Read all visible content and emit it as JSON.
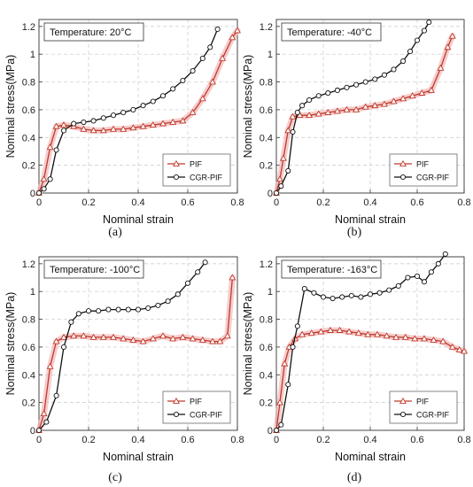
{
  "chart_data": [
    {
      "type": "line",
      "panel_label": "(a)",
      "annotation": "Temperature: 20°C",
      "xlabel": "Nominal strain",
      "ylabel": "Nominal stress(MPa)",
      "xlim": [
        0,
        0.8
      ],
      "ylim": [
        0,
        1.25
      ],
      "xticks": [
        "0",
        "0.2",
        "0.4",
        "0.6",
        "0.8"
      ],
      "yticks": [
        "0",
        "0.2",
        "0.4",
        "0.6",
        "0.8",
        "1",
        "1.2"
      ],
      "grid": true,
      "legend_position": "bottom-right",
      "series": [
        {
          "name": "PIF",
          "color": "#c0392b",
          "marker": "triangle",
          "x": [
            0,
            0.02,
            0.045,
            0.07,
            0.1,
            0.14,
            0.18,
            0.22,
            0.26,
            0.3,
            0.34,
            0.38,
            0.42,
            0.46,
            0.5,
            0.54,
            0.58,
            0.62,
            0.66,
            0.7,
            0.74,
            0.78,
            0.8
          ],
          "y": [
            0,
            0.1,
            0.33,
            0.48,
            0.49,
            0.48,
            0.46,
            0.45,
            0.45,
            0.46,
            0.46,
            0.47,
            0.48,
            0.49,
            0.5,
            0.51,
            0.52,
            0.58,
            0.68,
            0.8,
            0.97,
            1.12,
            1.17
          ]
        },
        {
          "name": "CGR-PIF",
          "color": "#111111",
          "marker": "circle",
          "x": [
            0,
            0.02,
            0.045,
            0.07,
            0.1,
            0.14,
            0.18,
            0.22,
            0.26,
            0.3,
            0.34,
            0.38,
            0.42,
            0.46,
            0.5,
            0.54,
            0.58,
            0.62,
            0.66,
            0.69,
            0.72
          ],
          "y": [
            0,
            0.03,
            0.1,
            0.31,
            0.45,
            0.5,
            0.51,
            0.52,
            0.54,
            0.56,
            0.58,
            0.6,
            0.63,
            0.66,
            0.7,
            0.75,
            0.81,
            0.88,
            0.97,
            1.05,
            1.18
          ]
        }
      ]
    },
    {
      "type": "line",
      "panel_label": "(b)",
      "annotation": "Temperature: -40°C",
      "xlabel": "Nominal strain",
      "ylabel": "Nominal stress(MPa)",
      "xlim": [
        0,
        0.8
      ],
      "ylim": [
        0,
        1.25
      ],
      "xticks": [
        "0",
        "0.2",
        "0.4",
        "0.6",
        "0.8"
      ],
      "yticks": [
        "0",
        "0.2",
        "0.4",
        "0.6",
        "0.8",
        "1",
        "1.2"
      ],
      "grid": true,
      "legend_position": "bottom-right",
      "series": [
        {
          "name": "PIF",
          "color": "#c0392b",
          "marker": "triangle",
          "x": [
            0,
            0.015,
            0.03,
            0.05,
            0.07,
            0.1,
            0.14,
            0.18,
            0.22,
            0.26,
            0.3,
            0.34,
            0.38,
            0.42,
            0.46,
            0.5,
            0.54,
            0.58,
            0.62,
            0.66,
            0.7,
            0.73,
            0.75
          ],
          "y": [
            0,
            0.1,
            0.25,
            0.45,
            0.55,
            0.56,
            0.56,
            0.57,
            0.58,
            0.59,
            0.6,
            0.6,
            0.62,
            0.63,
            0.64,
            0.66,
            0.68,
            0.7,
            0.72,
            0.74,
            0.9,
            1.05,
            1.13
          ]
        },
        {
          "name": "CGR-PIF",
          "color": "#111111",
          "marker": "circle",
          "x": [
            0,
            0.02,
            0.05,
            0.07,
            0.09,
            0.11,
            0.14,
            0.18,
            0.22,
            0.26,
            0.3,
            0.34,
            0.38,
            0.42,
            0.46,
            0.5,
            0.54,
            0.57,
            0.6,
            0.63,
            0.65
          ],
          "y": [
            0,
            0.05,
            0.16,
            0.44,
            0.58,
            0.63,
            0.67,
            0.7,
            0.72,
            0.74,
            0.76,
            0.78,
            0.8,
            0.82,
            0.85,
            0.89,
            0.95,
            1.02,
            1.1,
            1.17,
            1.23
          ]
        }
      ]
    },
    {
      "type": "line",
      "panel_label": "(c)",
      "annotation": "Temperature: -100°C",
      "xlabel": "Nominal strain",
      "ylabel": "Nominal stress(MPa)",
      "xlim": [
        0,
        0.8
      ],
      "ylim": [
        0,
        1.25
      ],
      "xticks": [
        "0",
        "0.2",
        "0.4",
        "0.6",
        "0.8"
      ],
      "yticks": [
        "0",
        "0.2",
        "0.4",
        "0.6",
        "0.8",
        "1",
        "1.2"
      ],
      "grid": true,
      "legend_position": "bottom-right",
      "series": [
        {
          "name": "PIF",
          "color": "#c0392b",
          "marker": "triangle",
          "x": [
            0,
            0.02,
            0.045,
            0.07,
            0.1,
            0.14,
            0.18,
            0.22,
            0.26,
            0.3,
            0.34,
            0.38,
            0.42,
            0.46,
            0.5,
            0.54,
            0.58,
            0.62,
            0.66,
            0.7,
            0.73,
            0.76,
            0.78
          ],
          "y": [
            0,
            0.12,
            0.46,
            0.64,
            0.67,
            0.68,
            0.68,
            0.67,
            0.67,
            0.67,
            0.66,
            0.65,
            0.64,
            0.66,
            0.68,
            0.66,
            0.67,
            0.66,
            0.65,
            0.64,
            0.64,
            0.68,
            1.1
          ]
        },
        {
          "name": "CGR-PIF",
          "color": "#111111",
          "marker": "circle",
          "x": [
            0,
            0.03,
            0.07,
            0.1,
            0.13,
            0.16,
            0.2,
            0.24,
            0.28,
            0.32,
            0.36,
            0.4,
            0.44,
            0.48,
            0.52,
            0.56,
            0.6,
            0.64,
            0.67
          ],
          "y": [
            0,
            0.06,
            0.25,
            0.6,
            0.78,
            0.84,
            0.86,
            0.86,
            0.87,
            0.87,
            0.87,
            0.87,
            0.88,
            0.9,
            0.93,
            0.98,
            1.06,
            1.14,
            1.21
          ]
        }
      ]
    },
    {
      "type": "line",
      "panel_label": "(d)",
      "annotation": "Temperature: -163°C",
      "xlabel": "Nominal strain",
      "ylabel": "Nominal stress(MPa)",
      "xlim": [
        0,
        0.8
      ],
      "ylim": [
        0,
        1.25
      ],
      "xticks": [
        "0",
        "0.2",
        "0.4",
        "0.6",
        "0.8"
      ],
      "yticks": [
        "0",
        "0.2",
        "0.4",
        "0.6",
        "0.8",
        "1",
        "1.2"
      ],
      "grid": true,
      "legend_position": "bottom-right",
      "series": [
        {
          "name": "PIF",
          "color": "#c0392b",
          "marker": "triangle",
          "x": [
            0,
            0.015,
            0.035,
            0.055,
            0.08,
            0.11,
            0.15,
            0.19,
            0.23,
            0.27,
            0.31,
            0.35,
            0.39,
            0.43,
            0.47,
            0.51,
            0.55,
            0.59,
            0.63,
            0.67,
            0.71,
            0.75,
            0.78,
            0.8
          ],
          "y": [
            0,
            0.2,
            0.48,
            0.6,
            0.66,
            0.69,
            0.7,
            0.71,
            0.72,
            0.72,
            0.71,
            0.7,
            0.69,
            0.69,
            0.68,
            0.67,
            0.67,
            0.66,
            0.66,
            0.65,
            0.64,
            0.6,
            0.58,
            0.57
          ]
        },
        {
          "name": "CGR-PIF",
          "color": "#111111",
          "marker": "circle",
          "x": [
            0,
            0.02,
            0.05,
            0.07,
            0.09,
            0.12,
            0.16,
            0.2,
            0.24,
            0.28,
            0.32,
            0.36,
            0.4,
            0.44,
            0.48,
            0.52,
            0.56,
            0.6,
            0.63,
            0.66,
            0.69,
            0.72
          ],
          "y": [
            0,
            0.04,
            0.33,
            0.6,
            0.75,
            1.02,
            0.99,
            0.96,
            0.95,
            0.96,
            0.97,
            0.96,
            0.98,
            0.99,
            1.01,
            1.04,
            1.1,
            1.11,
            1.07,
            1.14,
            1.2,
            1.27
          ]
        }
      ]
    }
  ]
}
